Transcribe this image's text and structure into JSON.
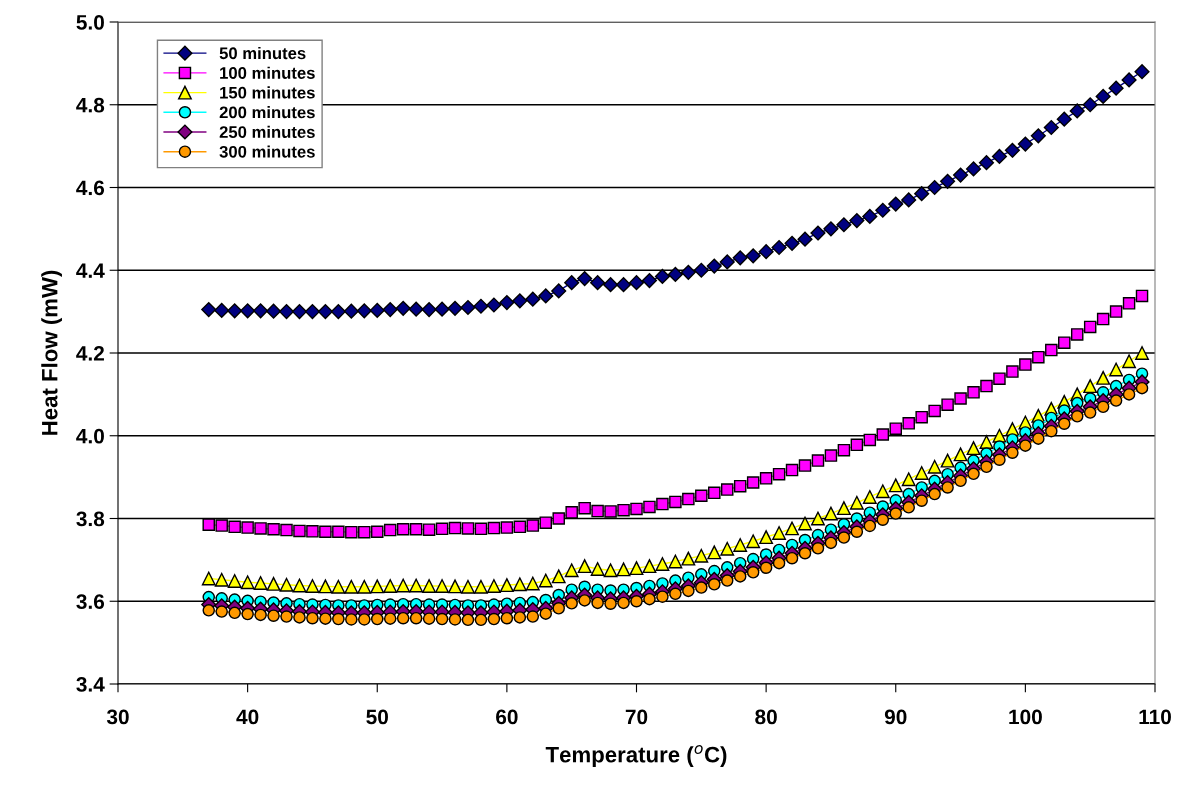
{
  "chart_data": {
    "type": "line",
    "xlabel": "Temperature ($^{o}$C)",
    "ylabel": "Heat Flow (mW)",
    "x": [
      37,
      38,
      39,
      40,
      41,
      42,
      43,
      44,
      45,
      46,
      47,
      48,
      49,
      50,
      51,
      52,
      53,
      54,
      55,
      56,
      57,
      58,
      59,
      60,
      61,
      62,
      63,
      64,
      65,
      66,
      67,
      68,
      69,
      70,
      71,
      72,
      73,
      74,
      75,
      76,
      77,
      78,
      79,
      80,
      81,
      82,
      83,
      84,
      85,
      86,
      87,
      88,
      89,
      90,
      91,
      92,
      93,
      94,
      95,
      96,
      97,
      98,
      99,
      100,
      101,
      102,
      103,
      104,
      105,
      106,
      107,
      108,
      109
    ],
    "xlim": [
      30,
      110
    ],
    "xticks": [
      30,
      40,
      50,
      60,
      70,
      80,
      90,
      100,
      110
    ],
    "ylim": [
      3.4,
      5.0
    ],
    "yticks": [
      3.4,
      3.6,
      3.8,
      {
        "value": 4.0,
        "label": "4.0"
      },
      4.2,
      4.4,
      4.6,
      4.8,
      {
        "value": 5.0,
        "label": "5.0"
      }
    ],
    "grid": "y",
    "legend": "top left",
    "series": [
      {
        "name": "50 minutes",
        "color": "#000080",
        "marker": "diamond",
        "values": [
          4.305,
          4.303,
          4.302,
          4.302,
          4.302,
          4.301,
          4.3,
          4.3,
          4.3,
          4.3,
          4.3,
          4.301,
          4.302,
          4.303,
          4.305,
          4.308,
          4.306,
          4.305,
          4.306,
          4.308,
          4.31,
          4.313,
          4.316,
          4.322,
          4.326,
          4.33,
          4.338,
          4.35,
          4.37,
          4.38,
          4.37,
          4.365,
          4.365,
          4.37,
          4.375,
          4.385,
          4.39,
          4.395,
          4.4,
          4.41,
          4.42,
          4.43,
          4.435,
          4.445,
          4.455,
          4.465,
          4.475,
          4.49,
          4.5,
          4.51,
          4.52,
          4.53,
          4.545,
          4.56,
          4.57,
          4.585,
          4.6,
          4.615,
          4.63,
          4.645,
          4.66,
          4.675,
          4.69,
          4.705,
          4.725,
          4.745,
          4.765,
          4.785,
          4.8,
          4.82,
          4.84,
          4.86,
          4.88
        ]
      },
      {
        "name": "100 minutes",
        "color": "#ff00ff",
        "marker": "square",
        "values": [
          3.785,
          3.783,
          3.78,
          3.778,
          3.776,
          3.774,
          3.772,
          3.77,
          3.769,
          3.768,
          3.768,
          3.767,
          3.767,
          3.768,
          3.772,
          3.774,
          3.774,
          3.773,
          3.775,
          3.777,
          3.776,
          3.775,
          3.777,
          3.778,
          3.78,
          3.783,
          3.79,
          3.8,
          3.815,
          3.825,
          3.818,
          3.817,
          3.82,
          3.823,
          3.828,
          3.835,
          3.84,
          3.847,
          3.855,
          3.862,
          3.87,
          3.878,
          3.887,
          3.897,
          3.907,
          3.917,
          3.928,
          3.94,
          3.952,
          3.965,
          3.978,
          3.99,
          4.003,
          4.017,
          4.03,
          4.045,
          4.06,
          4.075,
          4.09,
          4.105,
          4.12,
          4.138,
          4.155,
          4.172,
          4.19,
          4.207,
          4.225,
          4.245,
          4.263,
          4.282,
          4.3,
          4.32,
          4.338
        ]
      },
      {
        "name": "150 minutes",
        "color": "#ffff00",
        "marker": "triangle",
        "values": [
          3.655,
          3.652,
          3.649,
          3.646,
          3.644,
          3.642,
          3.64,
          3.638,
          3.637,
          3.636,
          3.635,
          3.635,
          3.635,
          3.636,
          3.637,
          3.638,
          3.638,
          3.637,
          3.637,
          3.636,
          3.635,
          3.635,
          3.637,
          3.639,
          3.641,
          3.643,
          3.65,
          3.66,
          3.675,
          3.685,
          3.678,
          3.675,
          3.677,
          3.68,
          3.685,
          3.69,
          3.696,
          3.703,
          3.71,
          3.718,
          3.727,
          3.736,
          3.745,
          3.755,
          3.765,
          3.776,
          3.788,
          3.8,
          3.812,
          3.825,
          3.838,
          3.852,
          3.866,
          3.88,
          3.895,
          3.91,
          3.925,
          3.94,
          3.955,
          3.97,
          3.985,
          4.0,
          4.016,
          4.032,
          4.048,
          4.065,
          4.082,
          4.1,
          4.12,
          4.14,
          4.16,
          4.18,
          4.2
        ]
      },
      {
        "name": "200 minutes",
        "color": "#00ffff",
        "marker": "circle",
        "values": [
          3.61,
          3.607,
          3.604,
          3.601,
          3.599,
          3.597,
          3.595,
          3.593,
          3.592,
          3.591,
          3.59,
          3.59,
          3.59,
          3.591,
          3.592,
          3.593,
          3.593,
          3.592,
          3.592,
          3.591,
          3.59,
          3.59,
          3.592,
          3.594,
          3.596,
          3.598,
          3.603,
          3.615,
          3.628,
          3.635,
          3.628,
          3.626,
          3.628,
          3.632,
          3.637,
          3.643,
          3.65,
          3.657,
          3.665,
          3.673,
          3.682,
          3.692,
          3.702,
          3.713,
          3.724,
          3.736,
          3.748,
          3.76,
          3.773,
          3.786,
          3.8,
          3.814,
          3.829,
          3.844,
          3.859,
          3.875,
          3.891,
          3.907,
          3.923,
          3.94,
          3.957,
          3.974,
          3.991,
          4.008,
          4.025,
          4.043,
          4.061,
          4.079,
          4.09,
          4.105,
          4.12,
          4.135,
          4.15
        ]
      },
      {
        "name": "250 minutes",
        "color": "#800080",
        "marker": "diamond",
        "values": [
          3.592,
          3.589,
          3.586,
          3.583,
          3.581,
          3.579,
          3.577,
          3.575,
          3.574,
          3.573,
          3.572,
          3.572,
          3.572,
          3.573,
          3.574,
          3.575,
          3.575,
          3.574,
          3.574,
          3.573,
          3.572,
          3.572,
          3.574,
          3.576,
          3.578,
          3.58,
          3.583,
          3.595,
          3.608,
          3.615,
          3.608,
          3.606,
          3.608,
          3.612,
          3.617,
          3.623,
          3.63,
          3.637,
          3.645,
          3.653,
          3.662,
          3.672,
          3.682,
          3.693,
          3.704,
          3.716,
          3.728,
          3.74,
          3.753,
          3.766,
          3.78,
          3.794,
          3.809,
          3.824,
          3.839,
          3.855,
          3.871,
          3.887,
          3.903,
          3.92,
          3.937,
          3.954,
          3.971,
          3.988,
          4.005,
          4.023,
          4.041,
          4.059,
          4.07,
          4.085,
          4.1,
          4.115,
          4.13
        ]
      },
      {
        "name": "300 minutes",
        "color": "#ff9900",
        "marker": "circle",
        "values": [
          3.578,
          3.575,
          3.572,
          3.569,
          3.567,
          3.565,
          3.563,
          3.561,
          3.559,
          3.558,
          3.557,
          3.556,
          3.556,
          3.557,
          3.558,
          3.559,
          3.559,
          3.558,
          3.557,
          3.556,
          3.555,
          3.555,
          3.557,
          3.559,
          3.561,
          3.563,
          3.57,
          3.583,
          3.595,
          3.602,
          3.596,
          3.594,
          3.596,
          3.6,
          3.605,
          3.611,
          3.618,
          3.625,
          3.633,
          3.641,
          3.65,
          3.66,
          3.67,
          3.681,
          3.692,
          3.704,
          3.716,
          3.728,
          3.741,
          3.754,
          3.768,
          3.782,
          3.797,
          3.812,
          3.827,
          3.843,
          3.859,
          3.875,
          3.891,
          3.908,
          3.925,
          3.942,
          3.959,
          3.976,
          3.993,
          4.011,
          4.029,
          4.047,
          4.056,
          4.07,
          4.085,
          4.1,
          4.115
        ]
      }
    ]
  }
}
